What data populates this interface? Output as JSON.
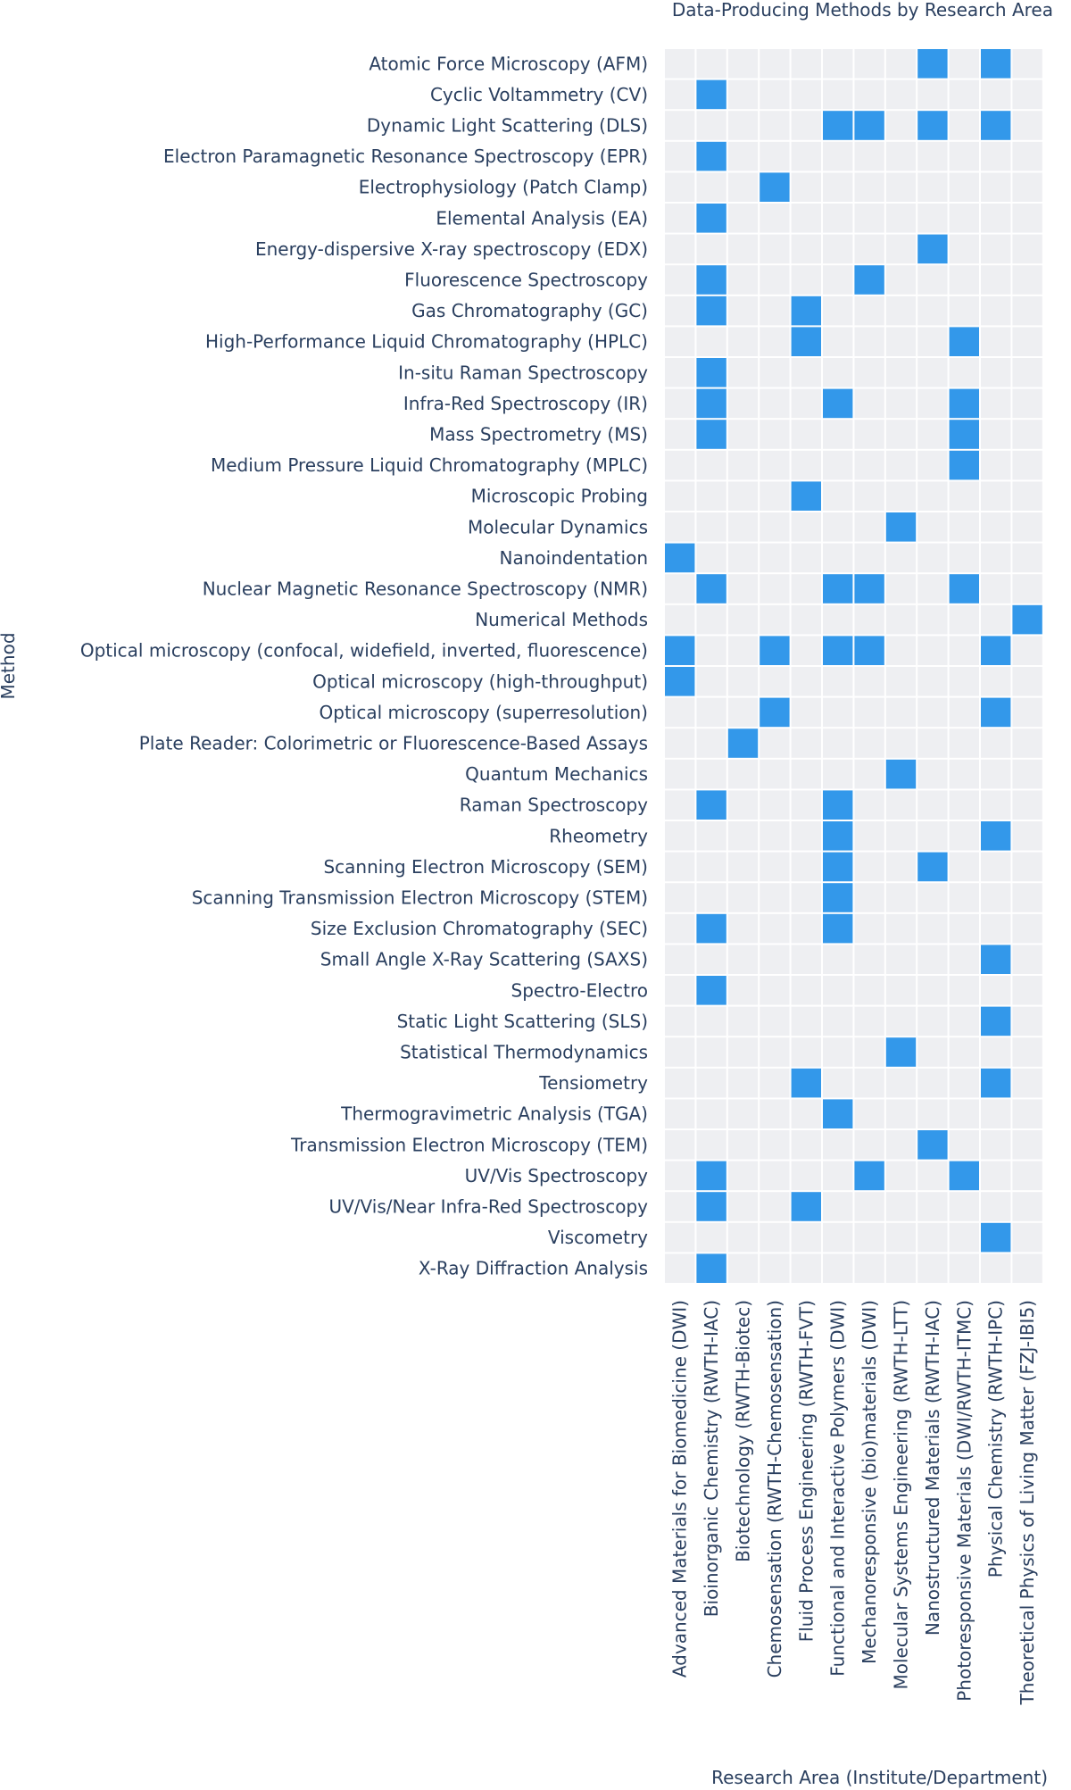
{
  "chart_data": {
    "type": "heatmap",
    "title": "Data-Producing Methods by Research Area",
    "xlabel": "Research Area (Institute/Department)",
    "ylabel": "Method",
    "colors": {
      "present": "#3398ea",
      "absent": "#eeeff2",
      "grid": "#ffffff"
    },
    "x_categories": [
      "Advanced Materials for Biomedicine (DWI)",
      "Bioinorganic Chemistry (RWTH-IAC)",
      "Biotechnology (RWTH-Biotec)",
      "Chemosensation (RWTH-Chemosensation)",
      "Fluid Process Engineering (RWTH-FVT)",
      "Functional and Interactive Polymers (DWI)",
      "Mechanoresponsive (bio)materials (DWI)",
      "Molecular Systems Engineering (RWTH-LTT)",
      "Nanostructured Materials (RWTH-IAC)",
      "Photoresponsive Materials (DWI/RWTH-ITMC)",
      "Physical Chemistry (RWTH-IPC)",
      "Theoretical Physics of Living Matter (FZJ-IBI5)"
    ],
    "rows": [
      {
        "method": "Atomic Force Microscopy (AFM)",
        "values": [
          0,
          0,
          0,
          0,
          0,
          0,
          0,
          0,
          1,
          0,
          1,
          0
        ]
      },
      {
        "method": "Cyclic Voltammetry (CV)",
        "values": [
          0,
          1,
          0,
          0,
          0,
          0,
          0,
          0,
          0,
          0,
          0,
          0
        ]
      },
      {
        "method": "Dynamic Light Scattering (DLS)",
        "values": [
          0,
          0,
          0,
          0,
          0,
          1,
          1,
          0,
          1,
          0,
          1,
          0
        ]
      },
      {
        "method": "Electron Paramagnetic Resonance Spectroscopy (EPR)",
        "values": [
          0,
          1,
          0,
          0,
          0,
          0,
          0,
          0,
          0,
          0,
          0,
          0
        ]
      },
      {
        "method": "Electrophysiology (Patch Clamp)",
        "values": [
          0,
          0,
          0,
          1,
          0,
          0,
          0,
          0,
          0,
          0,
          0,
          0
        ]
      },
      {
        "method": "Elemental Analysis (EA)",
        "values": [
          0,
          1,
          0,
          0,
          0,
          0,
          0,
          0,
          0,
          0,
          0,
          0
        ]
      },
      {
        "method": "Energy-dispersive X-ray spectroscopy (EDX)",
        "values": [
          0,
          0,
          0,
          0,
          0,
          0,
          0,
          0,
          1,
          0,
          0,
          0
        ]
      },
      {
        "method": "Fluorescence Spectroscopy",
        "values": [
          0,
          1,
          0,
          0,
          0,
          0,
          1,
          0,
          0,
          0,
          0,
          0
        ]
      },
      {
        "method": "Gas Chromatography (GC)",
        "values": [
          0,
          1,
          0,
          0,
          1,
          0,
          0,
          0,
          0,
          0,
          0,
          0
        ]
      },
      {
        "method": "High-Performance Liquid Chromatography (HPLC)",
        "values": [
          0,
          0,
          0,
          0,
          1,
          0,
          0,
          0,
          0,
          1,
          0,
          0
        ]
      },
      {
        "method": "In-situ Raman Spectroscopy",
        "values": [
          0,
          1,
          0,
          0,
          0,
          0,
          0,
          0,
          0,
          0,
          0,
          0
        ]
      },
      {
        "method": "Infra-Red Spectroscopy (IR)",
        "values": [
          0,
          1,
          0,
          0,
          0,
          1,
          0,
          0,
          0,
          1,
          0,
          0
        ]
      },
      {
        "method": "Mass Spectrometry (MS)",
        "values": [
          0,
          1,
          0,
          0,
          0,
          0,
          0,
          0,
          0,
          1,
          0,
          0
        ]
      },
      {
        "method": "Medium Pressure Liquid Chromatography (MPLC)",
        "values": [
          0,
          0,
          0,
          0,
          0,
          0,
          0,
          0,
          0,
          1,
          0,
          0
        ]
      },
      {
        "method": "Microscopic Probing",
        "values": [
          0,
          0,
          0,
          0,
          1,
          0,
          0,
          0,
          0,
          0,
          0,
          0
        ]
      },
      {
        "method": "Molecular Dynamics",
        "values": [
          0,
          0,
          0,
          0,
          0,
          0,
          0,
          1,
          0,
          0,
          0,
          0
        ]
      },
      {
        "method": "Nanoindentation",
        "values": [
          1,
          0,
          0,
          0,
          0,
          0,
          0,
          0,
          0,
          0,
          0,
          0
        ]
      },
      {
        "method": "Nuclear Magnetic Resonance Spectroscopy (NMR)",
        "values": [
          0,
          1,
          0,
          0,
          0,
          1,
          1,
          0,
          0,
          1,
          0,
          0
        ]
      },
      {
        "method": "Numerical Methods",
        "values": [
          0,
          0,
          0,
          0,
          0,
          0,
          0,
          0,
          0,
          0,
          0,
          1
        ]
      },
      {
        "method": "Optical microscopy (confocal, widefield, inverted, fluorescence)",
        "values": [
          1,
          0,
          0,
          1,
          0,
          1,
          1,
          0,
          0,
          0,
          1,
          0
        ]
      },
      {
        "method": "Optical microscopy (high-throughput)",
        "values": [
          1,
          0,
          0,
          0,
          0,
          0,
          0,
          0,
          0,
          0,
          0,
          0
        ]
      },
      {
        "method": "Optical microscopy (superresolution)",
        "values": [
          0,
          0,
          0,
          1,
          0,
          0,
          0,
          0,
          0,
          0,
          1,
          0
        ]
      },
      {
        "method": "Plate Reader: Colorimetric or Fluorescence-Based Assays",
        "values": [
          0,
          0,
          1,
          0,
          0,
          0,
          0,
          0,
          0,
          0,
          0,
          0
        ]
      },
      {
        "method": "Quantum Mechanics",
        "values": [
          0,
          0,
          0,
          0,
          0,
          0,
          0,
          1,
          0,
          0,
          0,
          0
        ]
      },
      {
        "method": "Raman Spectroscopy",
        "values": [
          0,
          1,
          0,
          0,
          0,
          1,
          0,
          0,
          0,
          0,
          0,
          0
        ]
      },
      {
        "method": "Rheometry",
        "values": [
          0,
          0,
          0,
          0,
          0,
          1,
          0,
          0,
          0,
          0,
          1,
          0
        ]
      },
      {
        "method": "Scanning Electron Microscopy (SEM)",
        "values": [
          0,
          0,
          0,
          0,
          0,
          1,
          0,
          0,
          1,
          0,
          0,
          0
        ]
      },
      {
        "method": "Scanning Transmission Electron Microscopy (STEM)",
        "values": [
          0,
          0,
          0,
          0,
          0,
          1,
          0,
          0,
          0,
          0,
          0,
          0
        ]
      },
      {
        "method": "Size Exclusion Chromatography (SEC)",
        "values": [
          0,
          1,
          0,
          0,
          0,
          1,
          0,
          0,
          0,
          0,
          0,
          0
        ]
      },
      {
        "method": "Small Angle X-Ray Scattering (SAXS)",
        "values": [
          0,
          0,
          0,
          0,
          0,
          0,
          0,
          0,
          0,
          0,
          1,
          0
        ]
      },
      {
        "method": "Spectro-Electro",
        "values": [
          0,
          1,
          0,
          0,
          0,
          0,
          0,
          0,
          0,
          0,
          0,
          0
        ]
      },
      {
        "method": "Static Light Scattering (SLS)",
        "values": [
          0,
          0,
          0,
          0,
          0,
          0,
          0,
          0,
          0,
          0,
          1,
          0
        ]
      },
      {
        "method": "Statistical Thermodynamics",
        "values": [
          0,
          0,
          0,
          0,
          0,
          0,
          0,
          1,
          0,
          0,
          0,
          0
        ]
      },
      {
        "method": "Tensiometry",
        "values": [
          0,
          0,
          0,
          0,
          1,
          0,
          0,
          0,
          0,
          0,
          1,
          0
        ]
      },
      {
        "method": "Thermogravimetric Analysis (TGA)",
        "values": [
          0,
          0,
          0,
          0,
          0,
          1,
          0,
          0,
          0,
          0,
          0,
          0
        ]
      },
      {
        "method": "Transmission Electron Microscopy (TEM)",
        "values": [
          0,
          0,
          0,
          0,
          0,
          0,
          0,
          0,
          1,
          0,
          0,
          0
        ]
      },
      {
        "method": "UV/Vis Spectroscopy",
        "values": [
          0,
          1,
          0,
          0,
          0,
          0,
          1,
          0,
          0,
          1,
          0,
          0
        ]
      },
      {
        "method": "UV/Vis/Near Infra-Red Spectroscopy",
        "values": [
          0,
          1,
          0,
          0,
          1,
          0,
          0,
          0,
          0,
          0,
          0,
          0
        ]
      },
      {
        "method": "Viscometry",
        "values": [
          0,
          0,
          0,
          0,
          0,
          0,
          0,
          0,
          0,
          0,
          1,
          0
        ]
      },
      {
        "method": "X-Ray Diffraction Analysis",
        "values": [
          0,
          1,
          0,
          0,
          0,
          0,
          0,
          0,
          0,
          0,
          0,
          0
        ]
      }
    ]
  }
}
